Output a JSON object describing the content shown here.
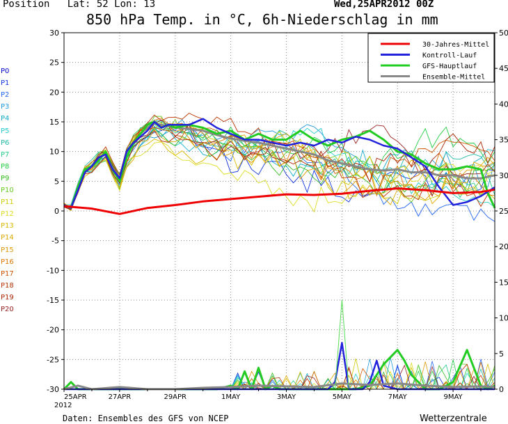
{
  "header": {
    "position_label": "Position",
    "lat_lon": "Lat: 52  Lon: 13",
    "run_date": "Wed,25APR2012 00Z",
    "title": "850 hPa Temp. in °C, 6h-Niederschlag in mm"
  },
  "footer": {
    "source": "Daten: Ensembles des GFS von NCEP",
    "brand": "Wetterzentrale"
  },
  "members": [
    {
      "label": "P0",
      "color": "#0000cc"
    },
    {
      "label": "P1",
      "color": "#1133dd"
    },
    {
      "label": "P2",
      "color": "#2266ee"
    },
    {
      "label": "P3",
      "color": "#2299dd"
    },
    {
      "label": "P4",
      "color": "#11aacc"
    },
    {
      "label": "P5",
      "color": "#22cccc"
    },
    {
      "label": "P6",
      "color": "#22bbaa"
    },
    {
      "label": "P7",
      "color": "#22cc88"
    },
    {
      "label": "P8",
      "color": "#22cc44"
    },
    {
      "label": "P9",
      "color": "#33bb22"
    },
    {
      "label": "P10",
      "color": "#66cc22"
    },
    {
      "label": "P11",
      "color": "#cccc00"
    },
    {
      "label": "P12",
      "color": "#dddd22"
    },
    {
      "label": "P13",
      "color": "#ddbb00"
    },
    {
      "label": "P14",
      "color": "#ddaa00"
    },
    {
      "label": "P15",
      "color": "#dd9900"
    },
    {
      "label": "P16",
      "color": "#dd7700"
    },
    {
      "label": "P17",
      "color": "#cc5500"
    },
    {
      "label": "P18",
      "color": "#bb3300"
    },
    {
      "label": "P19",
      "color": "#aa2200"
    },
    {
      "label": "P20",
      "color": "#992222"
    }
  ],
  "chart_data": {
    "type": "line",
    "title": "850 hPa Temp. in °C, 6h-Niederschlag in mm",
    "x_range_days": [
      0,
      15.5
    ],
    "x_ticks": [
      {
        "day": 0,
        "label": "25APR",
        "sublabel": "2012"
      },
      {
        "day": 2,
        "label": "27APR"
      },
      {
        "day": 4,
        "label": "29APR"
      },
      {
        "day": 6,
        "label": "1MAY"
      },
      {
        "day": 8,
        "label": "3MAY"
      },
      {
        "day": 10,
        "label": "5MAY"
      },
      {
        "day": 12,
        "label": "7MAY"
      },
      {
        "day": 14,
        "label": "9MAY"
      }
    ],
    "y_left": {
      "min": -30,
      "max": 30,
      "step": 5,
      "unit": "°C"
    },
    "y_right": {
      "min": 0,
      "max": 50,
      "step": 5,
      "unit": "mm"
    },
    "grid": true,
    "legend_position": "top-right",
    "legend": [
      {
        "name": "30-Jahres-Mittel",
        "color": "#ee0000"
      },
      {
        "name": "Kontroll-Lauf",
        "color": "#2222dd"
      },
      {
        "name": "GFS-Hauptlauf",
        "color": "#22cc22"
      },
      {
        "name": "Ensemble-Mittel",
        "color": "#888888"
      }
    ],
    "temperature_series": [
      {
        "name": "30-Jahres-Mittel",
        "color": "#ee0000",
        "width": 3,
        "x": [
          0,
          1,
          2,
          3,
          4,
          5,
          6,
          7,
          8,
          9,
          10,
          11,
          12,
          13,
          14,
          15,
          15.5
        ],
        "y": [
          0.8,
          0.4,
          -0.5,
          0.5,
          1.0,
          1.6,
          2.0,
          2.4,
          2.8,
          2.7,
          2.9,
          3.4,
          3.8,
          3.5,
          3.0,
          3.2,
          3.6
        ]
      },
      {
        "name": "Kontroll-Lauf",
        "color": "#2222dd",
        "width": 2.5,
        "x": [
          0,
          0.25,
          0.5,
          0.75,
          1,
          1.25,
          1.5,
          1.75,
          2,
          2.25,
          2.5,
          2.75,
          3,
          3.25,
          3.5,
          3.75,
          4,
          4.5,
          5,
          5.5,
          6,
          6.5,
          7,
          7.5,
          8,
          8.5,
          9,
          9.5,
          10,
          10.5,
          11,
          11.5,
          12,
          12.5,
          13,
          13.5,
          14,
          14.5,
          15,
          15.5
        ],
        "y": [
          1.0,
          0.5,
          3.5,
          6.5,
          7.5,
          9.0,
          9.5,
          7.0,
          5.5,
          10.0,
          11.5,
          12.5,
          13.5,
          15.0,
          14.0,
          14.5,
          14.5,
          14.5,
          15.5,
          14.0,
          13.0,
          12.0,
          12.0,
          11.5,
          11.0,
          11.5,
          11.0,
          12.0,
          11.5,
          12.5,
          12.0,
          11.0,
          10.5,
          9.0,
          7.5,
          4.0,
          1.0,
          1.5,
          2.5,
          4.0
        ]
      },
      {
        "name": "GFS-Hauptlauf",
        "color": "#22cc22",
        "width": 3,
        "x": [
          0,
          0.25,
          0.5,
          0.75,
          1,
          1.25,
          1.5,
          1.75,
          2,
          2.25,
          2.5,
          2.75,
          3,
          3.25,
          3.5,
          3.75,
          4,
          4.5,
          5,
          5.5,
          6,
          6.5,
          7,
          7.5,
          8,
          8.5,
          9,
          9.5,
          10,
          10.5,
          11,
          11.5,
          12,
          12.5,
          13,
          13.5,
          14,
          14.5,
          15,
          15.25,
          15.5
        ],
        "y": [
          1.0,
          0.5,
          4.0,
          7.0,
          7.5,
          8.5,
          10.0,
          7.0,
          5.0,
          9.0,
          11.5,
          13.0,
          14.5,
          15.0,
          14.0,
          14.5,
          14.0,
          14.5,
          14.0,
          13.0,
          13.5,
          12.0,
          13.0,
          12.0,
          12.0,
          13.5,
          12.0,
          11.0,
          12.0,
          12.5,
          13.5,
          12.0,
          10.0,
          9.5,
          8.0,
          7.0,
          7.0,
          7.5,
          7.0,
          3.0,
          0.5
        ]
      },
      {
        "name": "Ensemble-Mittel",
        "color": "#888888",
        "width": 3,
        "x": [
          0,
          0.25,
          0.5,
          0.75,
          1,
          1.25,
          1.5,
          1.75,
          2,
          2.25,
          2.5,
          2.75,
          3,
          3.25,
          3.5,
          3.75,
          4,
          4.5,
          5,
          5.5,
          6,
          6.5,
          7,
          7.5,
          8,
          8.5,
          9,
          9.5,
          10,
          10.5,
          11,
          11.5,
          12,
          12.5,
          13,
          13.5,
          14,
          14.5,
          15,
          15.5
        ],
        "y": [
          1.0,
          0.5,
          3.8,
          6.8,
          7.5,
          8.8,
          9.8,
          7.2,
          5.5,
          9.5,
          11.5,
          13.0,
          14.0,
          14.8,
          14.5,
          14.3,
          14.0,
          13.8,
          13.5,
          12.8,
          12.2,
          11.8,
          11.5,
          11.0,
          10.5,
          10.0,
          9.5,
          8.5,
          8.0,
          7.5,
          7.0,
          6.8,
          7.0,
          6.5,
          6.5,
          6.0,
          6.0,
          5.5,
          5.5,
          6.0
        ]
      }
    ],
    "ensemble_note": "members P1-P20 drawn as thin coloured temperature traces",
    "precipitation_series": [
      {
        "name": "GFS-Hauptlauf",
        "color": "#22cc22",
        "width": 3,
        "x": [
          0,
          0.25,
          0.5,
          1,
          1.5,
          2,
          3,
          3.5,
          4,
          5,
          5.5,
          6,
          6.25,
          6.5,
          6.75,
          7,
          7.25,
          7.5,
          7.75,
          8,
          9,
          10,
          10.5,
          11,
          11.25,
          11.5,
          11.75,
          12,
          12.25,
          12.5,
          13,
          13.5,
          14,
          14.5,
          14.75,
          15,
          15.25,
          15.5
        ],
        "y": [
          0,
          1,
          0,
          0,
          0,
          0,
          0,
          0,
          0,
          0,
          0,
          0.5,
          0,
          2.5,
          0,
          3,
          0,
          0.5,
          0,
          0,
          0,
          0,
          0,
          0.5,
          2,
          3.5,
          4.5,
          5.5,
          4,
          2,
          0,
          0,
          1,
          5.5,
          3,
          0.5,
          0,
          0.5
        ]
      },
      {
        "name": "Kontroll-Lauf",
        "color": "#2222dd",
        "width": 2.5,
        "x": [
          0,
          9,
          9.5,
          9.75,
          10,
          10.25,
          10.5,
          10.75,
          11,
          11.25,
          11.5,
          12,
          15.5
        ],
        "y": [
          0,
          0,
          0,
          1,
          6.5,
          0,
          0,
          0,
          1,
          4,
          0.5,
          0,
          0
        ]
      },
      {
        "name": "Ensemble-Mittel",
        "color": "#888888",
        "width": 3,
        "x": [
          0,
          0.5,
          1,
          2,
          3,
          4,
          5,
          6,
          7,
          8,
          9,
          10,
          11,
          12,
          13,
          14,
          15,
          15.5
        ],
        "y": [
          0,
          0.5,
          0,
          0.3,
          0,
          0,
          0.2,
          0.3,
          0.5,
          0.4,
          0.3,
          0.8,
          0.6,
          0.8,
          0.5,
          0.3,
          0.4,
          0.3
        ]
      },
      {
        "name": "spike-member",
        "color": "#55dd55",
        "width": 1,
        "x": [
          0,
          9.75,
          10,
          10.25,
          10.5,
          15.5
        ],
        "y": [
          0,
          0,
          12.5,
          0,
          0,
          0
        ]
      }
    ]
  }
}
